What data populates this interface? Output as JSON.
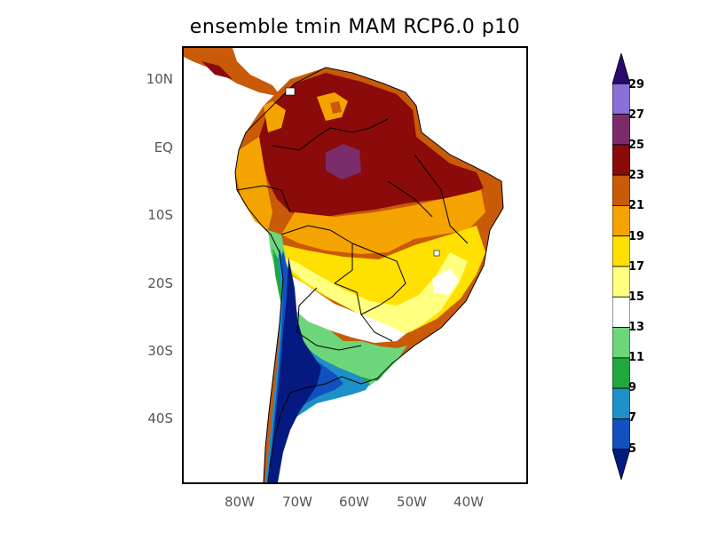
{
  "title": "ensemble tmin MAM RCP6.0 p10",
  "lat_ticks": [
    {
      "label": "10N",
      "lat": 10
    },
    {
      "label": "EQ",
      "lat": 0
    },
    {
      "label": "10S",
      "lat": -10
    },
    {
      "label": "20S",
      "lat": -20
    },
    {
      "label": "30S",
      "lat": -30
    },
    {
      "label": "40S",
      "lat": -40
    }
  ],
  "lon_ticks": [
    {
      "label": "80W",
      "lon": -80
    },
    {
      "label": "70W",
      "lon": -70
    },
    {
      "label": "60W",
      "lon": -60
    },
    {
      "label": "50W",
      "lon": -50
    },
    {
      "label": "40W",
      "lon": -40
    }
  ],
  "colorbar": {
    "labels": [
      "29",
      "27",
      "25",
      "23",
      "21",
      "19",
      "17",
      "15",
      "13",
      "11",
      "9",
      "7",
      "5"
    ],
    "colors": [
      "#2a0a6e",
      "#8c6fd8",
      "#7a2d6a",
      "#8b0a0a",
      "#c85a08",
      "#f5a300",
      "#ffe000",
      "#ffff80",
      "#ffffff",
      "#6ed67a",
      "#20a83c",
      "#1e90c8",
      "#1250c0",
      "#041a80"
    ]
  }
}
